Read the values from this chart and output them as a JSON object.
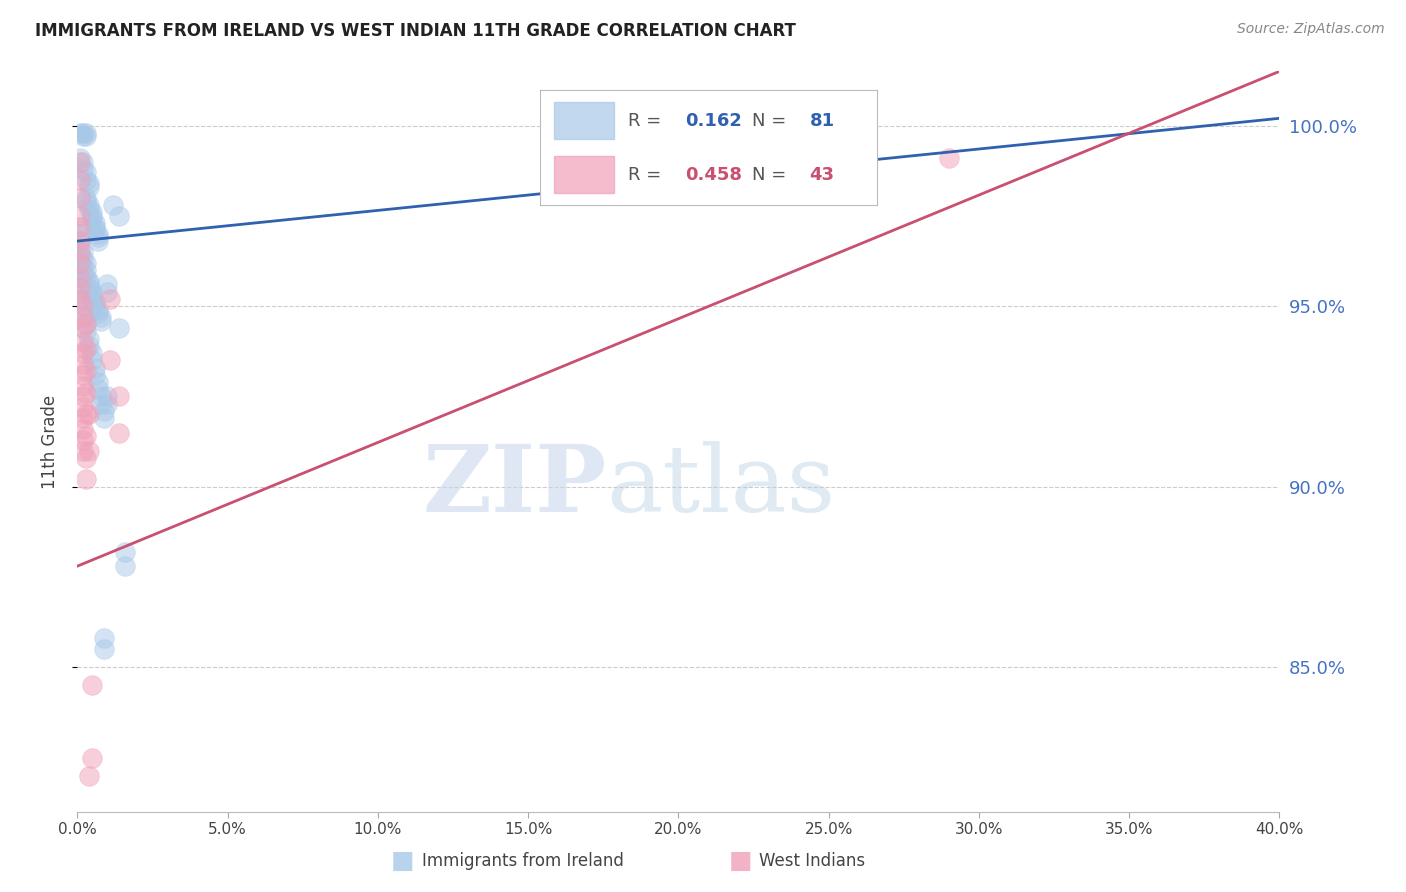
{
  "title": "IMMIGRANTS FROM IRELAND VS WEST INDIAN 11TH GRADE CORRELATION CHART",
  "source": "Source: ZipAtlas.com",
  "ylabel": "11th Grade",
  "right_yticks": [
    100.0,
    95.0,
    90.0,
    85.0
  ],
  "blue_R": 0.162,
  "blue_N": 81,
  "pink_R": 0.458,
  "pink_N": 43,
  "blue_color": "#a8c8e8",
  "pink_color": "#f0a0b8",
  "blue_line_color": "#3060b0",
  "pink_line_color": "#c85070",
  "watermark_zip": "ZIP",
  "watermark_atlas": "atlas",
  "background_color": "#ffffff",
  "grid_color": "#cccccc",
  "right_label_color": "#4472c4",
  "blue_line_x0": 0.0,
  "blue_line_y0": 96.8,
  "blue_line_x1": 0.4,
  "blue_line_y1": 100.2,
  "pink_line_x0": 0.0,
  "pink_line_y0": 87.8,
  "pink_line_x1": 0.4,
  "pink_line_y1": 101.5,
  "blue_scatter": [
    [
      0.001,
      99.8
    ],
    [
      0.002,
      99.8
    ],
    [
      0.002,
      99.7
    ],
    [
      0.003,
      99.8
    ],
    [
      0.003,
      99.7
    ],
    [
      0.001,
      99.1
    ],
    [
      0.002,
      99.0
    ],
    [
      0.002,
      98.8
    ],
    [
      0.003,
      98.7
    ],
    [
      0.003,
      98.5
    ],
    [
      0.004,
      98.4
    ],
    [
      0.004,
      98.3
    ],
    [
      0.003,
      98.0
    ],
    [
      0.003,
      97.9
    ],
    [
      0.004,
      97.8
    ],
    [
      0.004,
      97.7
    ],
    [
      0.005,
      97.6
    ],
    [
      0.005,
      97.5
    ],
    [
      0.005,
      97.4
    ],
    [
      0.006,
      97.3
    ],
    [
      0.006,
      97.2
    ],
    [
      0.006,
      97.1
    ],
    [
      0.007,
      97.0
    ],
    [
      0.007,
      96.9
    ],
    [
      0.007,
      96.8
    ],
    [
      0.001,
      97.2
    ],
    [
      0.001,
      97.0
    ],
    [
      0.001,
      96.8
    ],
    [
      0.001,
      96.6
    ],
    [
      0.001,
      96.4
    ],
    [
      0.001,
      96.2
    ],
    [
      0.002,
      96.5
    ],
    [
      0.002,
      96.3
    ],
    [
      0.002,
      96.1
    ],
    [
      0.002,
      95.9
    ],
    [
      0.003,
      96.2
    ],
    [
      0.003,
      96.0
    ],
    [
      0.003,
      95.8
    ],
    [
      0.004,
      95.7
    ],
    [
      0.004,
      95.6
    ],
    [
      0.004,
      95.5
    ],
    [
      0.005,
      95.4
    ],
    [
      0.005,
      95.3
    ],
    [
      0.005,
      95.2
    ],
    [
      0.006,
      95.1
    ],
    [
      0.006,
      95.0
    ],
    [
      0.007,
      94.9
    ],
    [
      0.007,
      94.8
    ],
    [
      0.008,
      94.7
    ],
    [
      0.008,
      94.6
    ],
    [
      0.001,
      95.8
    ],
    [
      0.001,
      95.6
    ],
    [
      0.002,
      95.4
    ],
    [
      0.002,
      95.2
    ],
    [
      0.002,
      94.9
    ],
    [
      0.003,
      94.7
    ],
    [
      0.003,
      94.5
    ],
    [
      0.003,
      94.3
    ],
    [
      0.004,
      94.1
    ],
    [
      0.004,
      93.9
    ],
    [
      0.005,
      93.7
    ],
    [
      0.005,
      93.5
    ],
    [
      0.006,
      93.3
    ],
    [
      0.006,
      93.1
    ],
    [
      0.007,
      92.9
    ],
    [
      0.007,
      92.7
    ],
    [
      0.008,
      92.5
    ],
    [
      0.008,
      92.3
    ],
    [
      0.009,
      92.1
    ],
    [
      0.009,
      91.9
    ],
    [
      0.012,
      97.8
    ],
    [
      0.014,
      97.5
    ],
    [
      0.01,
      95.6
    ],
    [
      0.01,
      95.4
    ],
    [
      0.014,
      94.4
    ],
    [
      0.01,
      92.5
    ],
    [
      0.01,
      92.3
    ],
    [
      0.016,
      88.2
    ],
    [
      0.016,
      87.8
    ],
    [
      0.009,
      85.8
    ],
    [
      0.009,
      85.5
    ]
  ],
  "pink_scatter": [
    [
      0.001,
      99.0
    ],
    [
      0.001,
      98.5
    ],
    [
      0.001,
      98.0
    ],
    [
      0.001,
      97.5
    ],
    [
      0.001,
      97.2
    ],
    [
      0.001,
      96.8
    ],
    [
      0.001,
      96.5
    ],
    [
      0.001,
      96.2
    ],
    [
      0.001,
      95.8
    ],
    [
      0.001,
      95.5
    ],
    [
      0.001,
      95.2
    ],
    [
      0.002,
      95.0
    ],
    [
      0.002,
      94.7
    ],
    [
      0.002,
      94.4
    ],
    [
      0.002,
      94.0
    ],
    [
      0.002,
      93.7
    ],
    [
      0.002,
      93.4
    ],
    [
      0.002,
      93.1
    ],
    [
      0.002,
      92.8
    ],
    [
      0.002,
      92.5
    ],
    [
      0.002,
      92.2
    ],
    [
      0.002,
      91.9
    ],
    [
      0.002,
      91.6
    ],
    [
      0.002,
      91.3
    ],
    [
      0.002,
      91.0
    ],
    [
      0.003,
      94.5
    ],
    [
      0.003,
      93.8
    ],
    [
      0.003,
      93.2
    ],
    [
      0.003,
      92.6
    ],
    [
      0.003,
      92.0
    ],
    [
      0.003,
      91.4
    ],
    [
      0.003,
      90.8
    ],
    [
      0.003,
      90.2
    ],
    [
      0.004,
      92.0
    ],
    [
      0.004,
      91.0
    ],
    [
      0.011,
      95.2
    ],
    [
      0.011,
      93.5
    ],
    [
      0.014,
      92.5
    ],
    [
      0.014,
      91.5
    ],
    [
      0.005,
      84.5
    ],
    [
      0.005,
      82.5
    ],
    [
      0.004,
      82.0
    ],
    [
      0.29,
      99.1
    ]
  ],
  "xlim": [
    0.0,
    0.4
  ],
  "ylim": [
    81.0,
    101.5
  ],
  "xtick_positions": [
    0.0,
    0.05,
    0.1,
    0.15,
    0.2,
    0.25,
    0.3,
    0.35,
    0.4
  ],
  "xtick_labels": [
    "0.0%",
    "5.0%",
    "10.0%",
    "15.0%",
    "20.0%",
    "25.0%",
    "30.0%",
    "35.0%",
    "40.0%"
  ],
  "ytick_positions": [
    100.0,
    95.0,
    90.0,
    85.0
  ],
  "ytick_labels": [
    "100.0%",
    "95.0%",
    "90.0%",
    "85.0%"
  ]
}
